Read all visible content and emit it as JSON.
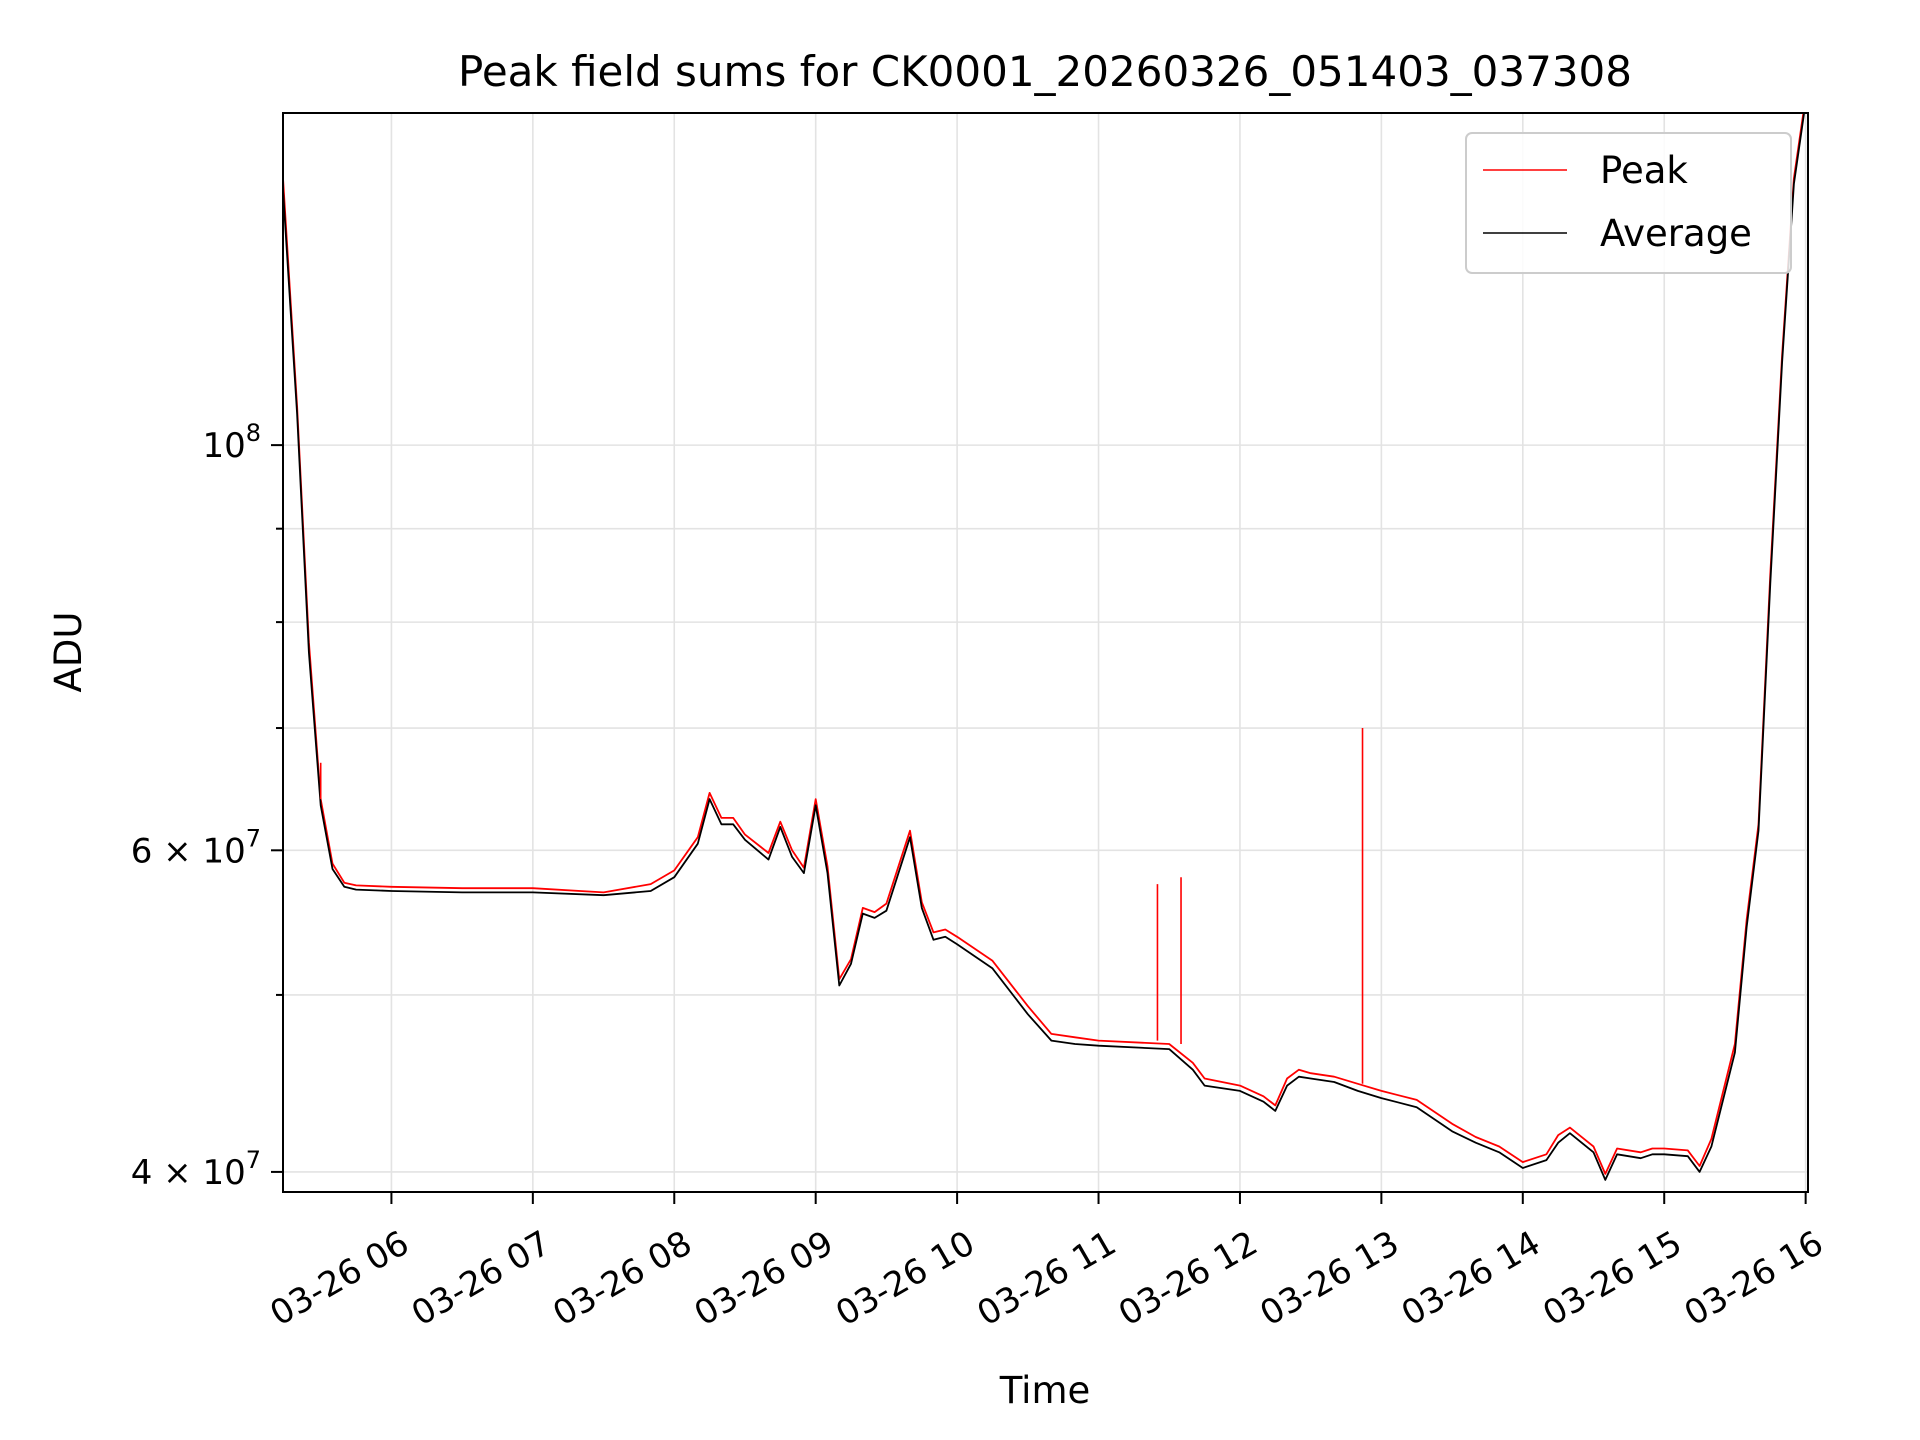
{
  "chart_data": {
    "type": "line",
    "title": "Peak field sums for CK0001_20260326_051403_037308",
    "xlabel": "Time",
    "ylabel": "ADU",
    "y_scale": "log",
    "xlim": [
      "2026-03-26 05:14",
      "2026-03-26 16:01"
    ],
    "ylim": [
      39000000,
      152000000
    ],
    "x_ticks": [
      "03-26 06",
      "03-26 07",
      "03-26 08",
      "03-26 09",
      "03-26 10",
      "03-26 11",
      "03-26 12",
      "03-26 13",
      "03-26 14",
      "03-26 15",
      "03-26 16"
    ],
    "y_ticks": [
      {
        "value": 40000000,
        "base": "4",
        "mult": "×",
        "exp_base": "10",
        "exp": "7"
      },
      {
        "value": 60000000,
        "base": "6",
        "mult": "×",
        "exp_base": "10",
        "exp": "7"
      },
      {
        "value": 100000000,
        "base": "",
        "mult": "",
        "exp_base": "10",
        "exp": "8"
      }
    ],
    "y_minor_ticks": [
      50000000,
      70000000,
      80000000,
      90000000
    ],
    "grid": true,
    "legend": {
      "placement": "top-right"
    },
    "x": [
      "05:14",
      "05:20",
      "05:25",
      "05:30",
      "05:35",
      "05:40",
      "05:45",
      "06:00",
      "06:30",
      "07:00",
      "07:30",
      "07:50",
      "08:00",
      "08:10",
      "08:15",
      "08:20",
      "08:25",
      "08:30",
      "08:40",
      "08:45",
      "08:50",
      "08:55",
      "09:00",
      "09:05",
      "09:10",
      "09:15",
      "09:20",
      "09:25",
      "09:30",
      "09:40",
      "09:45",
      "09:50",
      "09:55",
      "10:00",
      "10:15",
      "10:30",
      "10:40",
      "10:50",
      "11:00",
      "11:30",
      "11:40",
      "11:45",
      "12:00",
      "12:10",
      "12:15",
      "12:20",
      "12:25",
      "12:30",
      "12:40",
      "12:50",
      "13:00",
      "13:15",
      "13:30",
      "13:40",
      "13:50",
      "14:00",
      "14:10",
      "14:15",
      "14:20",
      "14:30",
      "14:35",
      "14:40",
      "14:50",
      "14:55",
      "15:00",
      "15:10",
      "15:15",
      "15:20",
      "15:30",
      "15:35",
      "15:40",
      "15:45",
      "15:50",
      "15:55",
      "16:00"
    ],
    "series": [
      {
        "name": "Peak",
        "color": "#ff0000",
        "values": [
          140000000,
          105000000,
          78000000,
          64000000,
          59000000,
          57600000,
          57400000,
          57300000,
          57200000,
          57200000,
          56900000,
          57500000,
          58500000,
          61000000,
          64500000,
          62500000,
          62500000,
          61200000,
          59800000,
          62200000,
          60000000,
          58700000,
          64000000,
          58800000,
          51000000,
          52300000,
          55800000,
          55500000,
          56100000,
          61500000,
          56200000,
          54100000,
          54300000,
          53800000,
          52200000,
          49300000,
          47600000,
          47400000,
          47200000,
          47000000,
          45900000,
          45000000,
          44600000,
          44000000,
          43500000,
          45000000,
          45500000,
          45300000,
          45100000,
          44700000,
          44300000,
          43800000,
          42500000,
          41800000,
          41300000,
          40500000,
          40900000,
          41900000,
          42300000,
          41300000,
          39900000,
          41200000,
          41000000,
          41200000,
          41200000,
          41100000,
          40300000,
          41700000,
          47000000,
          55000000,
          62000000,
          85000000,
          112000000,
          140000000,
          155000000
        ]
      },
      {
        "name": "Average",
        "color": "#000000",
        "values": [
          138000000,
          104000000,
          77000000,
          63500000,
          58600000,
          57300000,
          57100000,
          57000000,
          56900000,
          56900000,
          56700000,
          57000000,
          58000000,
          60500000,
          64000000,
          62000000,
          62000000,
          60800000,
          59300000,
          61800000,
          59500000,
          58300000,
          63500000,
          58300000,
          50600000,
          52000000,
          55400000,
          55100000,
          55600000,
          61000000,
          55800000,
          53600000,
          53800000,
          53300000,
          51700000,
          48800000,
          47200000,
          47000000,
          46900000,
          46700000,
          45500000,
          44600000,
          44300000,
          43700000,
          43200000,
          44600000,
          45100000,
          45000000,
          44800000,
          44300000,
          43900000,
          43400000,
          42100000,
          41500000,
          41000000,
          40200000,
          40600000,
          41500000,
          42000000,
          41000000,
          39600000,
          40900000,
          40700000,
          40900000,
          40900000,
          40800000,
          40000000,
          41300000,
          46500000,
          54500000,
          61500000,
          84000000,
          111000000,
          139000000,
          154000000
        ]
      }
    ],
    "spikes": [
      {
        "x": "11:25",
        "value": 57500000
      },
      {
        "x": "11:35",
        "value": 58000000
      },
      {
        "x": "12:52",
        "value": 70000000
      },
      {
        "x": "05:30",
        "value": 67000000
      }
    ]
  }
}
